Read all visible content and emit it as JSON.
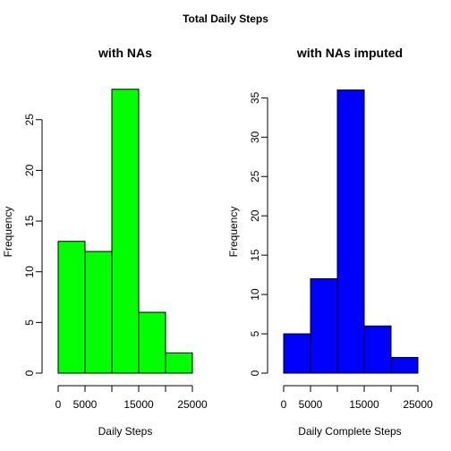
{
  "figure_title": "Total Daily Steps",
  "chart_data": [
    {
      "type": "bar",
      "title": "with NAs",
      "xlabel": "Daily Steps",
      "ylabel": "Frequency",
      "bins": [
        [
          0,
          5000
        ],
        [
          5000,
          10000
        ],
        [
          10000,
          15000
        ],
        [
          15000,
          20000
        ],
        [
          20000,
          25000
        ]
      ],
      "values": [
        13,
        12,
        28,
        6,
        2
      ],
      "xlim": [
        0,
        25000
      ],
      "ylim": [
        0,
        28
      ],
      "x_ticks": [
        0,
        5000,
        10000,
        15000,
        20000,
        25000
      ],
      "x_tick_labels": [
        "0",
        "5000",
        "",
        "15000",
        "",
        "25000"
      ],
      "y_ticks": [
        0,
        5,
        10,
        15,
        20,
        25
      ],
      "y_tick_labels": [
        "0",
        "5",
        "10",
        "15",
        "20",
        "25"
      ],
      "fill_color": "#00ff00",
      "grid": false
    },
    {
      "type": "bar",
      "title": "with NAs imputed",
      "xlabel": "Daily Complete Steps",
      "ylabel": "Frequency",
      "bins": [
        [
          0,
          5000
        ],
        [
          5000,
          10000
        ],
        [
          10000,
          15000
        ],
        [
          15000,
          20000
        ],
        [
          20000,
          25000
        ]
      ],
      "values": [
        5,
        12,
        36,
        6,
        2
      ],
      "xlim": [
        0,
        25000
      ],
      "ylim": [
        0,
        36
      ],
      "x_ticks": [
        0,
        5000,
        10000,
        15000,
        20000,
        25000
      ],
      "x_tick_labels": [
        "0",
        "5000",
        "",
        "15000",
        "",
        "25000"
      ],
      "y_ticks": [
        0,
        5,
        10,
        15,
        20,
        25,
        30,
        35
      ],
      "y_tick_labels": [
        "0",
        "5",
        "10",
        "15",
        "20",
        "25",
        "30",
        "35"
      ],
      "fill_color": "#0000ff",
      "grid": false
    }
  ]
}
